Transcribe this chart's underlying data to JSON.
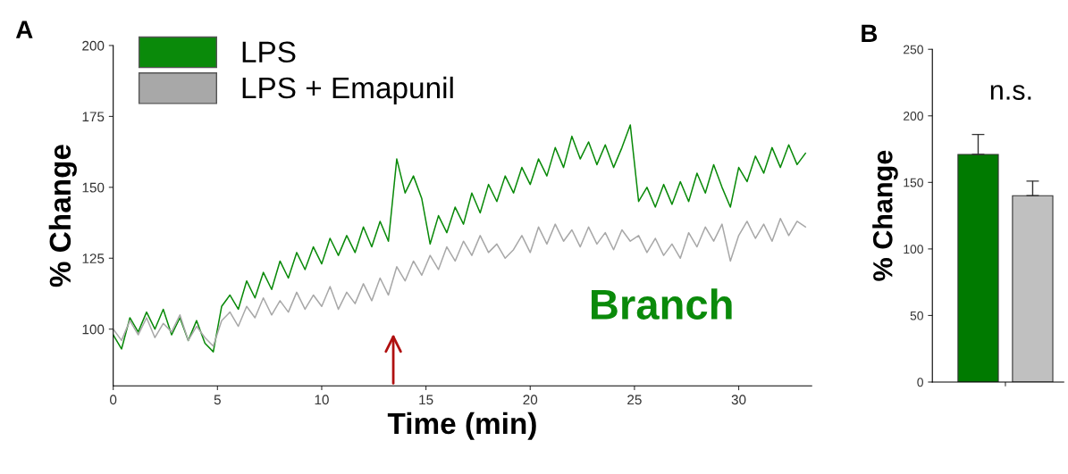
{
  "chart_data": [
    {
      "type": "line",
      "title": "A",
      "xlabel": "Time (min)",
      "ylabel": "% Change",
      "legend": "top left",
      "xlim": [
        0,
        33.5
      ],
      "xticks": [
        0,
        5,
        10,
        15,
        20,
        25,
        30
      ],
      "ylim": [
        80,
        200
      ],
      "yticks": [
        100,
        125,
        150,
        175,
        200
      ],
      "x": [
        0,
        0.4,
        0.8,
        1.2,
        1.6,
        2.0,
        2.4,
        2.8,
        3.2,
        3.6,
        4.0,
        4.4,
        4.8,
        5.2,
        5.6,
        6.0,
        6.4,
        6.8,
        7.2,
        7.6,
        8.0,
        8.4,
        8.8,
        9.2,
        9.6,
        10.0,
        10.4,
        10.8,
        11.2,
        11.6,
        12.0,
        12.4,
        12.8,
        13.2,
        13.6,
        14.0,
        14.4,
        14.8,
        15.2,
        15.6,
        16.0,
        16.4,
        16.8,
        17.2,
        17.6,
        18.0,
        18.4,
        18.8,
        19.2,
        19.6,
        20.0,
        20.4,
        20.8,
        21.2,
        21.6,
        22.0,
        22.4,
        22.8,
        23.2,
        23.6,
        24.0,
        24.4,
        24.8,
        25.2,
        25.6,
        26.0,
        26.4,
        26.8,
        27.2,
        27.6,
        28.0,
        28.4,
        28.8,
        29.2,
        29.6,
        30.0,
        30.4,
        30.8,
        31.2,
        31.6,
        32.0,
        32.4,
        32.8,
        33.2
      ],
      "series": [
        {
          "name": "LPS",
          "color": "#0a8a0a",
          "values": [
            98,
            93,
            104,
            99,
            106,
            100,
            107,
            98,
            104,
            96,
            103,
            95,
            92,
            108,
            112,
            107,
            117,
            111,
            120,
            114,
            124,
            118,
            127,
            121,
            129,
            123,
            132,
            126,
            133,
            127,
            136,
            129,
            138,
            131,
            160,
            148,
            154,
            146,
            130,
            140,
            134,
            143,
            137,
            148,
            141,
            151,
            145,
            154,
            148,
            157,
            151,
            160,
            154,
            164,
            157,
            168,
            160,
            166,
            158,
            165,
            157,
            164,
            172,
            145,
            150,
            143,
            151,
            144,
            152,
            145,
            155,
            148,
            158,
            150,
            143,
            157,
            152,
            161,
            155,
            164,
            157,
            165,
            158,
            162
          ]
        },
        {
          "name": "LPS + Emapunil",
          "color": "#a8a8a8",
          "values": [
            100,
            96,
            103,
            98,
            104,
            97,
            102,
            99,
            105,
            96,
            101,
            97,
            94,
            103,
            106,
            101,
            108,
            104,
            111,
            105,
            110,
            106,
            113,
            107,
            112,
            108,
            115,
            107,
            113,
            109,
            116,
            110,
            118,
            112,
            122,
            117,
            124,
            119,
            126,
            121,
            129,
            124,
            131,
            126,
            133,
            127,
            130,
            125,
            128,
            133,
            127,
            136,
            130,
            137,
            131,
            135,
            129,
            136,
            130,
            134,
            128,
            135,
            131,
            133,
            127,
            132,
            126,
            130,
            125,
            134,
            129,
            136,
            131,
            137,
            124,
            133,
            138,
            132,
            137,
            131,
            139,
            133,
            138,
            136
          ]
        }
      ],
      "annotations": [
        "Branch"
      ]
    },
    {
      "type": "bar",
      "title": "B",
      "ylabel": "% Change",
      "categories": [
        null,
        null
      ],
      "values": [
        171,
        140
      ],
      "colors": [
        "#007a00",
        "#c0c0c0"
      ],
      "errors": [
        [
          171,
          186
        ],
        [
          140,
          151
        ]
      ],
      "ylim": [
        0,
        250
      ],
      "yticks": [
        0,
        50,
        100,
        150,
        200,
        250
      ],
      "annotations": [
        "n.s."
      ]
    }
  ]
}
